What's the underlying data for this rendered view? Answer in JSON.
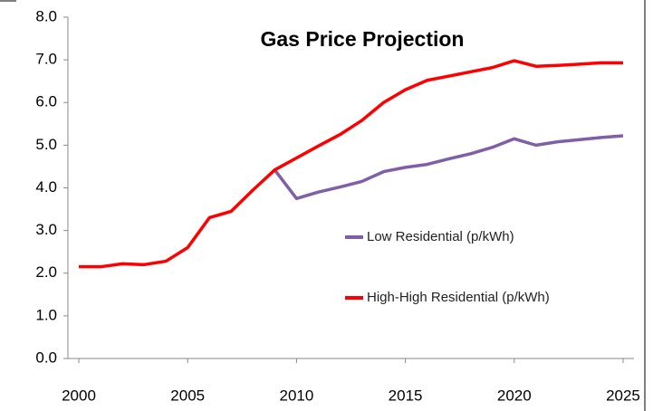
{
  "chart_data": {
    "type": "line",
    "title": "Gas Price Projection",
    "x": [
      2000,
      2001,
      2002,
      2003,
      2004,
      2005,
      2006,
      2007,
      2008,
      2009,
      2010,
      2011,
      2012,
      2013,
      2014,
      2015,
      2016,
      2017,
      2018,
      2019,
      2020,
      2021,
      2022,
      2023,
      2024,
      2025
    ],
    "series": [
      {
        "name": "Low Residential (p/kWh)",
        "color": "#7f5fa8",
        "values": [
          null,
          null,
          null,
          null,
          null,
          null,
          null,
          null,
          null,
          4.42,
          3.75,
          3.9,
          4.02,
          4.15,
          4.38,
          4.48,
          4.55,
          4.68,
          4.8,
          4.95,
          5.15,
          5.0,
          5.08,
          5.13,
          5.18,
          5.22
        ]
      },
      {
        "name": "High-High Residential (p/kWh)",
        "color": "#ff0000",
        "values": [
          2.15,
          2.15,
          2.22,
          2.2,
          2.28,
          2.6,
          3.3,
          3.45,
          3.95,
          4.42,
          4.7,
          4.98,
          5.25,
          5.58,
          6.0,
          6.3,
          6.52,
          6.62,
          6.72,
          6.82,
          6.98,
          6.85,
          6.87,
          6.9,
          6.93,
          6.93
        ]
      }
    ],
    "xlim": [
      1999.5,
      2025.5
    ],
    "xticks": [
      2000,
      2005,
      2010,
      2015,
      2020,
      2025
    ],
    "ylim": [
      0,
      8
    ],
    "yticks": [
      {
        "value": 0,
        "label": "0.0"
      },
      {
        "value": 1,
        "label": "1.0"
      },
      {
        "value": 2,
        "label": "2.0"
      },
      {
        "value": 3,
        "label": "3.0"
      },
      {
        "value": 4,
        "label": "4.0"
      },
      {
        "value": 5,
        "label": "5.0"
      },
      {
        "value": 6,
        "label": "6.0"
      },
      {
        "value": 7,
        "label": "7.0"
      },
      {
        "value": 8,
        "label": "8.0"
      }
    ],
    "grid": false
  }
}
